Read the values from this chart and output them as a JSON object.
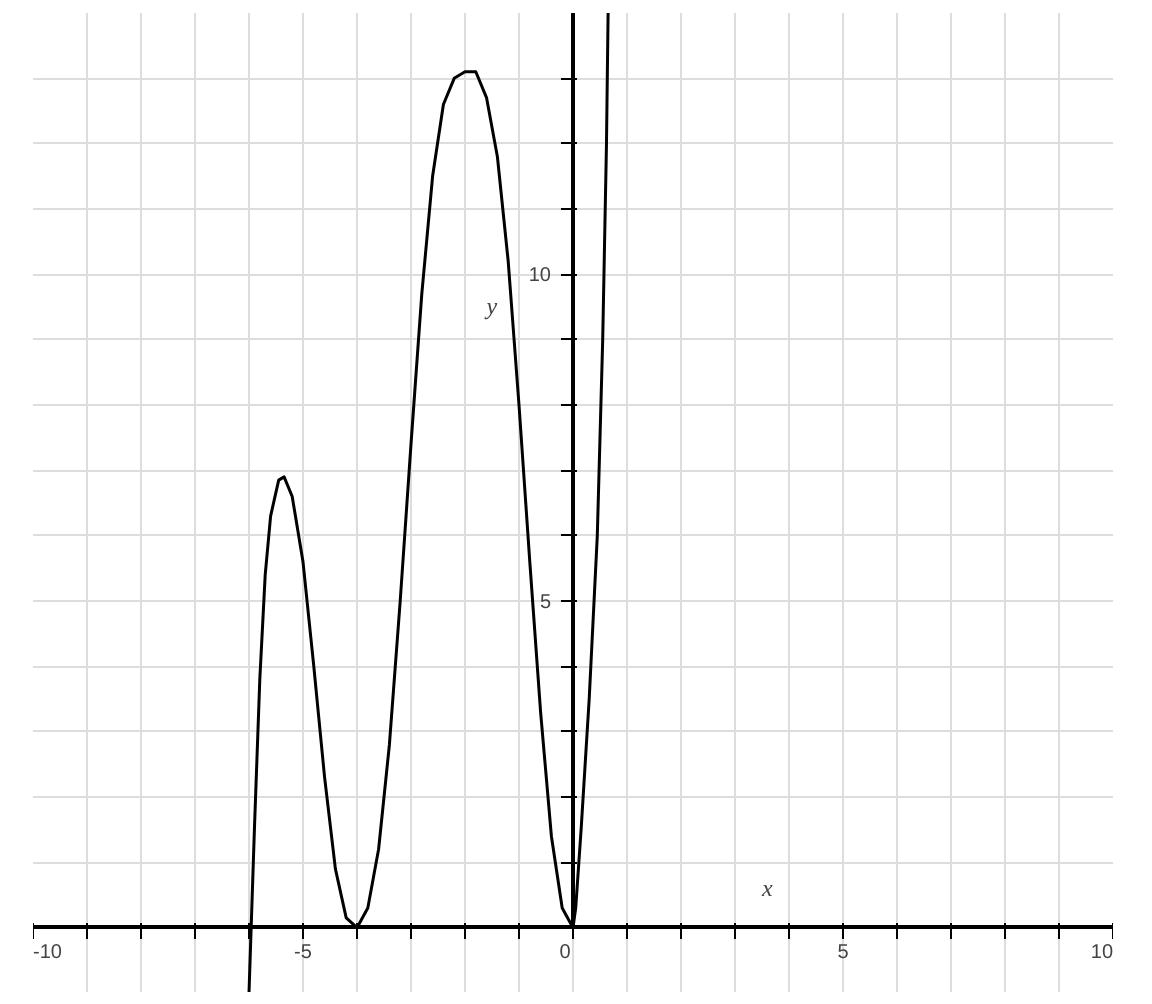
{
  "chart_data": {
    "type": "line",
    "xlabel": "x",
    "ylabel": "y",
    "x": [
      -6.0,
      -5.9,
      -5.8,
      -5.7,
      -5.6,
      -5.45,
      -5.35,
      -5.2,
      -5.0,
      -4.8,
      -4.6,
      -4.4,
      -4.2,
      -4.0,
      -3.8,
      -3.6,
      -3.4,
      -3.2,
      -3.0,
      -2.8,
      -2.6,
      -2.4,
      -2.2,
      -2.0,
      -1.8,
      -1.6,
      -1.4,
      -1.2,
      -1.0,
      -0.8,
      -0.6,
      -0.4,
      -0.2,
      0.0,
      0.05,
      0.15,
      0.3,
      0.45,
      0.55,
      0.62,
      0.65
    ],
    "series": [
      {
        "color": "#000000",
        "values": [
          -1.0,
          1.5,
          3.8,
          5.4,
          6.3,
          6.85,
          6.9,
          6.6,
          5.6,
          4.0,
          2.3,
          0.9,
          0.15,
          0.0,
          0.3,
          1.2,
          2.8,
          5.0,
          7.4,
          9.7,
          11.5,
          12.6,
          13.0,
          13.1,
          13.1,
          12.7,
          11.8,
          10.2,
          8.0,
          5.6,
          3.3,
          1.4,
          0.3,
          0.0,
          0.3,
          1.5,
          3.5,
          6.0,
          9.0,
          12.0,
          14.0
        ]
      }
    ],
    "xlim": [
      -10,
      10
    ],
    "ylim": [
      -1,
      14
    ],
    "xticks": [
      {
        "value": -10,
        "label": "-10"
      },
      {
        "value": -9,
        "label": null
      },
      {
        "value": -8,
        "label": null
      },
      {
        "value": -7,
        "label": null
      },
      {
        "value": -6,
        "label": null
      },
      {
        "value": -5,
        "label": "-5"
      },
      {
        "value": -4,
        "label": null
      },
      {
        "value": -3,
        "label": null
      },
      {
        "value": -2,
        "label": null
      },
      {
        "value": -1,
        "label": null
      },
      {
        "value": 0,
        "label": "0"
      },
      {
        "value": 1,
        "label": null
      },
      {
        "value": 2,
        "label": null
      },
      {
        "value": 3,
        "label": null
      },
      {
        "value": 4,
        "label": null
      },
      {
        "value": 5,
        "label": "5"
      },
      {
        "value": 6,
        "label": null
      },
      {
        "value": 7,
        "label": null
      },
      {
        "value": 8,
        "label": null
      },
      {
        "value": 9,
        "label": null
      },
      {
        "value": 10,
        "label": "10"
      }
    ],
    "yticks": [
      {
        "value": 1,
        "label": null
      },
      {
        "value": 2,
        "label": null
      },
      {
        "value": 3,
        "label": null
      },
      {
        "value": 4,
        "label": null
      },
      {
        "value": 5,
        "label": "5"
      },
      {
        "value": 6,
        "label": null
      },
      {
        "value": 7,
        "label": null
      },
      {
        "value": 8,
        "label": null
      },
      {
        "value": 9,
        "label": null
      },
      {
        "value": 10,
        "label": "10"
      },
      {
        "value": 11,
        "label": null
      },
      {
        "value": 12,
        "label": null
      },
      {
        "value": 13,
        "label": null
      }
    ],
    "grid": true,
    "line_style": "solid",
    "marker": "none"
  }
}
